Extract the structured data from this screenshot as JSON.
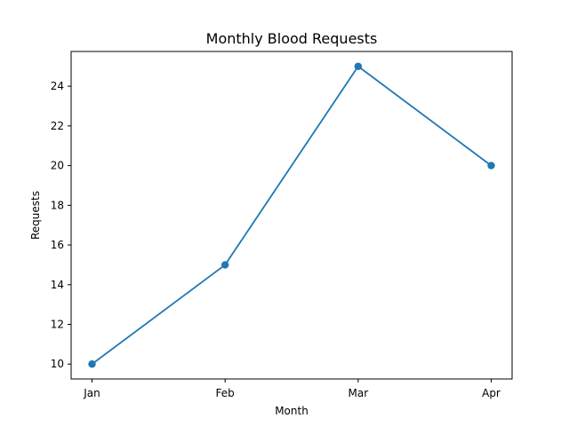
{
  "chart_data": {
    "type": "line",
    "title": "Monthly Blood Requests",
    "xlabel": "Month",
    "ylabel": "Requests",
    "categories": [
      "Jan",
      "Feb",
      "Mar",
      "Apr"
    ],
    "series": [
      {
        "values": [
          10,
          15,
          25,
          20
        ],
        "color": "#1f77b4",
        "marker": "circle"
      }
    ],
    "ylim": [
      9.25,
      25.75
    ],
    "yticks": [
      10,
      12,
      14,
      16,
      18,
      20,
      22,
      24
    ],
    "grid": false,
    "legend": "none"
  }
}
